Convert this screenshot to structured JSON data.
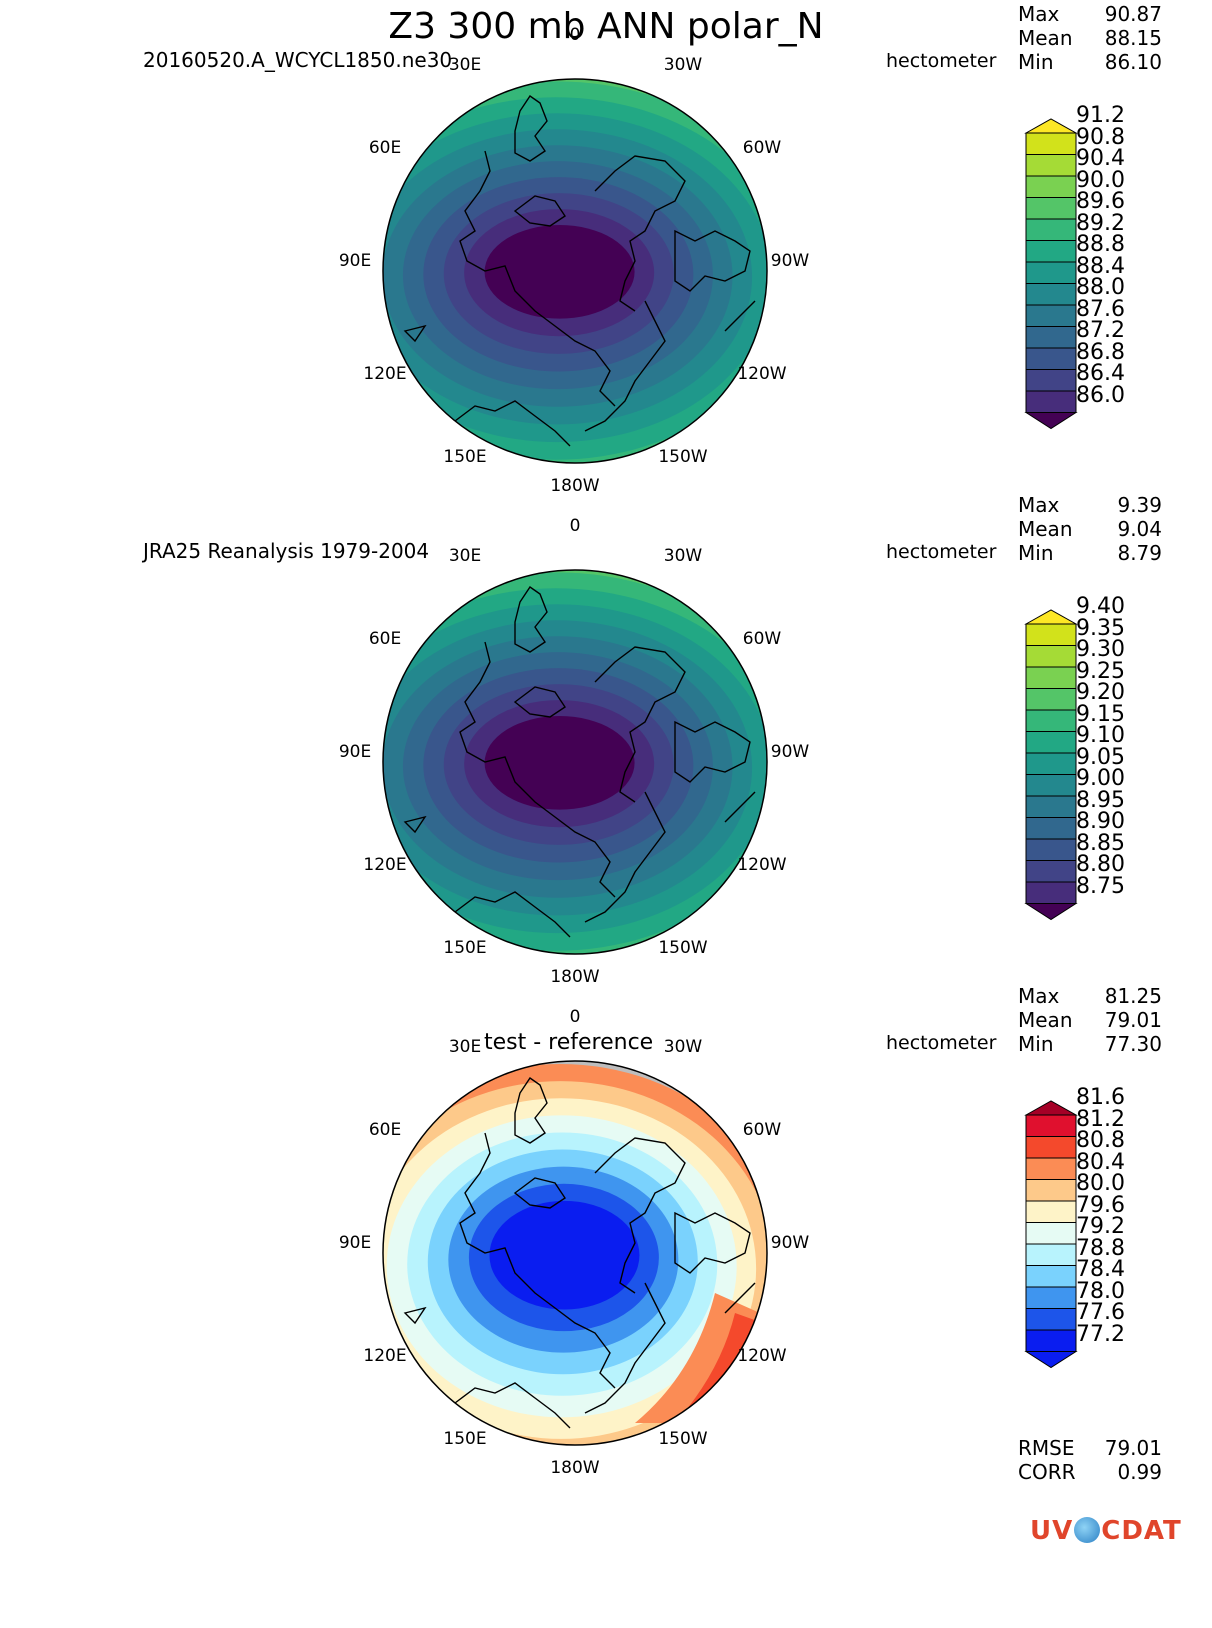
{
  "title": "Z3 300 mb ANN polar_N",
  "panels": [
    {
      "id": "test",
      "subtitle": "20160520.A_WCYCL1850.ne30",
      "units": "hectometer",
      "stats": [
        {
          "label": "Max",
          "value": "90.87"
        },
        {
          "label": "Mean",
          "value": "88.15"
        },
        {
          "label": "Min",
          "value": "86.10"
        }
      ],
      "colorbar": {
        "ticks": [
          "91.2",
          "90.8",
          "90.4",
          "90.0",
          "89.6",
          "89.2",
          "88.8",
          "88.4",
          "88.0",
          "87.6",
          "87.2",
          "86.8",
          "86.4",
          "86.0"
        ],
        "colors": [
          "#fde725",
          "#d2e21b",
          "#a5db36",
          "#7ad151",
          "#54c568",
          "#35b779",
          "#22a884",
          "#1f988b",
          "#23888e",
          "#2a788e",
          "#31688e",
          "#39568c",
          "#414487",
          "#472d7b",
          "#440154"
        ]
      },
      "diverging": false
    },
    {
      "id": "reference",
      "subtitle": "JRA25 Reanalysis 1979-2004",
      "units": "hectometer",
      "stats": [
        {
          "label": "Max",
          "value": "9.39"
        },
        {
          "label": "Mean",
          "value": "9.04"
        },
        {
          "label": "Min",
          "value": "8.79"
        }
      ],
      "colorbar": {
        "ticks": [
          "9.40",
          "9.35",
          "9.30",
          "9.25",
          "9.20",
          "9.15",
          "9.10",
          "9.05",
          "9.00",
          "8.95",
          "8.90",
          "8.85",
          "8.80",
          "8.75"
        ],
        "colors": [
          "#fde725",
          "#d2e21b",
          "#a5db36",
          "#7ad151",
          "#54c568",
          "#35b779",
          "#22a884",
          "#1f988b",
          "#23888e",
          "#2a788e",
          "#31688e",
          "#39568c",
          "#414487",
          "#472d7b",
          "#440154"
        ]
      },
      "diverging": false
    },
    {
      "id": "diff",
      "subtitle": "test - reference",
      "units": "hectometer",
      "stats": [
        {
          "label": "Max",
          "value": "81.25"
        },
        {
          "label": "Mean",
          "value": "79.01"
        },
        {
          "label": "Min",
          "value": "77.30"
        }
      ],
      "colorbar": {
        "ticks": [
          "81.6",
          "81.2",
          "80.8",
          "80.4",
          "80.0",
          "79.6",
          "79.2",
          "78.8",
          "78.4",
          "78.0",
          "77.6",
          "77.2"
        ],
        "colors": [
          "#a50026",
          "#e0102e",
          "#f4492c",
          "#fb8c55",
          "#fdc98a",
          "#fef3c8",
          "#e6fbf4",
          "#b8f3fd",
          "#7ad2fd",
          "#3f95ef",
          "#1d55ea",
          "#0a1df0",
          "#0a1df0"
        ]
      },
      "diverging": true
    }
  ],
  "lon_labels": [
    "0",
    "30W",
    "60W",
    "90W",
    "120W",
    "150W",
    "180W",
    "150E",
    "120E",
    "90E",
    "60E",
    "30E"
  ],
  "summary": [
    {
      "label": "RMSE",
      "value": "79.01"
    },
    {
      "label": "CORR",
      "value": "0.99"
    }
  ],
  "logo": {
    "text_left": "UV",
    "text_right": "CDAT"
  }
}
